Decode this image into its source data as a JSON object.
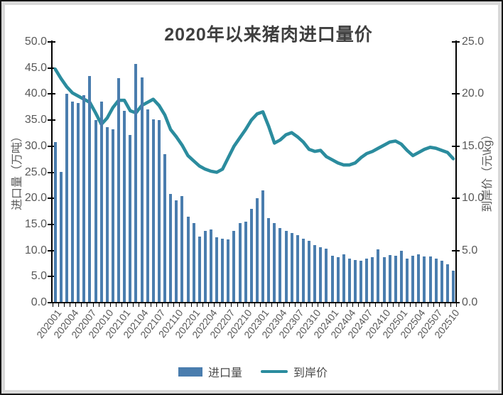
{
  "page": {
    "title": "2020年以来猪肉进口量价"
  },
  "colors": {
    "bar": "#4a7dae",
    "line": "#2b8c9e",
    "title_text": "#3f3f3f",
    "axis_text": "#595959",
    "axis_line": "#000000",
    "frame_border": "#161616",
    "frame_strip": "#d9d9d9"
  },
  "chart_data": {
    "type": "bar+line combo",
    "title": "2020年以来猪肉进口量价",
    "grid": "off",
    "legend_position": "bottom-center",
    "months": [
      "202001",
      "202002",
      "202003",
      "202004",
      "202005",
      "202006",
      "202007",
      "202008",
      "202009",
      "202010",
      "202011",
      "202012",
      "202101",
      "202102",
      "202103",
      "202104",
      "202105",
      "202106",
      "202107",
      "202108",
      "202109",
      "202110",
      "202111",
      "202112",
      "202201",
      "202202",
      "202203",
      "202204",
      "202205",
      "202206",
      "202207",
      "202208",
      "202209",
      "202210",
      "202211",
      "202212",
      "202301",
      "202302",
      "202303",
      "202304",
      "202305",
      "202306",
      "202307",
      "202308",
      "202309",
      "202310",
      "202311",
      "202312",
      "202401",
      "202402",
      "202403",
      "202404",
      "202405",
      "202406",
      "202407",
      "202408",
      "202409",
      "202410",
      "202411",
      "202412",
      "202501",
      "202502",
      "202503",
      "202504",
      "202505",
      "202506",
      "202507",
      "202508",
      "202509",
      "202510"
    ],
    "x_tick_labels": [
      "202001",
      "202004",
      "202007",
      "202010",
      "202101",
      "202104",
      "202107",
      "202110",
      "202201",
      "202204",
      "202207",
      "202210",
      "202301",
      "202304",
      "202307",
      "202310",
      "202401",
      "202404",
      "202407",
      "202410",
      "202501",
      "202504",
      "202507",
      "202510"
    ],
    "series": [
      {
        "name": "进口量",
        "type": "bar",
        "axis": "left",
        "color": "#4a7dae",
        "values": [
          30.8,
          25.1,
          40.0,
          38.6,
          38.3,
          39.8,
          43.5,
          35.0,
          38.5,
          33.6,
          33.2,
          43.0,
          36.8,
          32.1,
          45.8,
          43.2,
          37.0,
          35.1,
          35.0,
          28.5,
          20.8,
          19.6,
          20.4,
          16.5,
          15.2,
          12.7,
          13.8,
          14.0,
          12.5,
          12.3,
          12.2,
          13.7,
          15.3,
          15.6,
          18.0,
          20.0,
          21.5,
          16.2,
          15.2,
          14.3,
          13.8,
          13.4,
          12.9,
          12.3,
          11.8,
          11.0,
          10.6,
          10.4,
          9.0,
          8.7,
          9.3,
          8.4,
          8.2,
          8.1,
          8.4,
          8.7,
          10.2,
          8.7,
          9.2,
          9.0,
          10.0,
          8.4,
          9.0,
          9.3,
          8.8,
          8.9,
          8.5,
          8.1,
          7.4,
          6.1
        ]
      },
      {
        "name": "到岸价",
        "type": "line",
        "axis": "right",
        "color": "#2b8c9e",
        "values": [
          22.4,
          21.5,
          20.7,
          20.1,
          19.8,
          19.5,
          19.2,
          18.2,
          17.1,
          17.7,
          18.7,
          19.4,
          19.4,
          18.4,
          18.2,
          18.9,
          19.2,
          19.5,
          18.9,
          18.0,
          16.6,
          15.9,
          15.1,
          14.1,
          13.6,
          13.1,
          12.8,
          12.6,
          12.5,
          12.8,
          13.9,
          15.0,
          15.8,
          16.6,
          17.5,
          18.1,
          18.3,
          16.9,
          15.3,
          15.6,
          16.1,
          16.3,
          15.9,
          15.4,
          14.7,
          14.5,
          14.6,
          14.0,
          13.7,
          13.4,
          13.2,
          13.2,
          13.4,
          13.9,
          14.3,
          14.5,
          14.8,
          15.1,
          15.4,
          15.5,
          15.2,
          14.6,
          14.1,
          14.4,
          14.7,
          14.9,
          14.8,
          14.6,
          14.4,
          13.8
        ]
      }
    ],
    "left_axis": {
      "title": "进口量（万吨）",
      "min": 0,
      "max": 50,
      "step": 5,
      "tick_labels": [
        "0.0",
        "5.0",
        "10.0",
        "15.0",
        "20.0",
        "25.0",
        "30.0",
        "35.0",
        "40.0",
        "45.0",
        "50.0"
      ]
    },
    "right_axis": {
      "title": "到岸价（元\\kg）",
      "min": 0,
      "max": 25,
      "step": 5,
      "tick_labels": [
        "0.0",
        "5.0",
        "10.0",
        "15.0",
        "20.0",
        "25.0"
      ]
    },
    "legend": [
      "进口量",
      "到岸价"
    ]
  }
}
